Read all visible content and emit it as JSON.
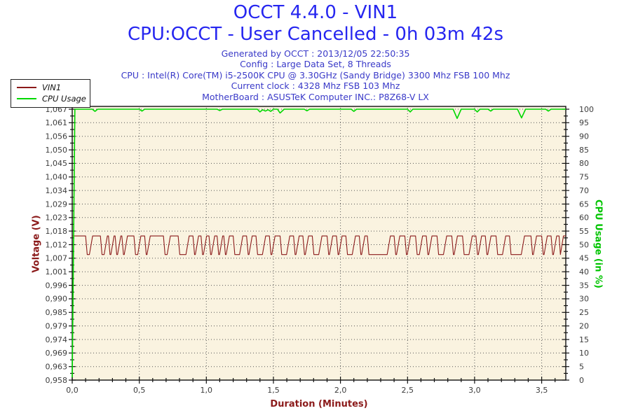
{
  "header": {
    "title_line1": "OCCT 4.4.0 - VIN1",
    "title_line2": "CPU:OCCT - User Cancelled - 0h 03m 42s",
    "info_lines": [
      "Generated by OCCT : 2013/12/05 22:50:35",
      "Config : Large Data Set, 8 Threads",
      "CPU : Intel(R) Core(TM) i5-2500K CPU @ 3.30GHz (Sandy Bridge) 3300 Mhz FSB 100 Mhz",
      "Current clock : 4328 Mhz FSB 103 Mhz",
      "MotherBoard : ASUSTeK Computer INC.: P8Z68-V LX"
    ]
  },
  "legend": {
    "items": [
      {
        "label": "VIN1",
        "color": "#8B1A1A"
      },
      {
        "label": "CPU Usage",
        "color": "#00D800"
      }
    ]
  },
  "colors": {
    "title_blue": "#2626F0",
    "info_blue": "#3A3AC8",
    "voltage_red": "#8B1A1A",
    "cpu_green": "#00C400",
    "tick_label_gray": "#3C3C3C",
    "plot_bg": "#FAF3E0",
    "frame_black": "#111111",
    "grid_dot": "#555555"
  },
  "chart_data": {
    "type": "line",
    "title": "OCCT 4.4.0 - VIN1",
    "xlabel": "Duration (Minutes)",
    "ylabel_left": "Voltage (V)",
    "ylabel_right": "CPU Usage (in %)",
    "grid": "dotted",
    "legend_position": "top-left",
    "plot_bg": "#FAF3E0",
    "x_range": [
      0,
      3.68
    ],
    "x_major_ticks": {
      "values": [
        0,
        0.5,
        1.0,
        1.5,
        2.0,
        2.5,
        3.0,
        3.5
      ],
      "labels": [
        "0,0",
        "0,5",
        "1,0",
        "1,5",
        "2,0",
        "2,5",
        "3,0",
        "3,5"
      ]
    },
    "x_minor_step": 0.1,
    "y_left": {
      "range": [
        0.958,
        1.067
      ],
      "tick_labels_top_to_bottom": [
        "1,067",
        "1,061",
        "1,056",
        "1,050",
        "1,045",
        "1,040",
        "1,034",
        "1,029",
        "1,023",
        "1,018",
        "1,012",
        "1,007",
        "1,001",
        "0,996",
        "0,990",
        "0,985",
        "0,979",
        "0,974",
        "0,969",
        "0,963",
        "0,958"
      ]
    },
    "y_right": {
      "range": [
        0,
        100
      ],
      "tick_labels_top_to_bottom": [
        "100",
        "95",
        "90",
        "85",
        "80",
        "75",
        "70",
        "65",
        "60",
        "55",
        "50",
        "45",
        "40",
        "35",
        "30",
        "25",
        "20",
        "15",
        "10",
        "5",
        "0"
      ]
    },
    "series": [
      {
        "name": "VIN1",
        "axis": "left",
        "color": "#8B1A1A",
        "waveform": {
          "high": 1.016,
          "low": 1.0085,
          "start": 0.0,
          "end": 3.68,
          "ramp": 0.012,
          "low_segments": [
            [
              0.1,
              0.14
            ],
            [
              0.21,
              0.25
            ],
            [
              0.27,
              0.3
            ],
            [
              0.32,
              0.35
            ],
            [
              0.37,
              0.4
            ],
            [
              0.46,
              0.5
            ],
            [
              0.54,
              0.57
            ],
            [
              0.68,
              0.72
            ],
            [
              0.79,
              0.86
            ],
            [
              0.9,
              0.93
            ],
            [
              0.96,
              0.99
            ],
            [
              1.02,
              1.05
            ],
            [
              1.08,
              1.11
            ],
            [
              1.13,
              1.16
            ],
            [
              1.2,
              1.26
            ],
            [
              1.3,
              1.33
            ],
            [
              1.37,
              1.43
            ],
            [
              1.47,
              1.5
            ],
            [
              1.55,
              1.61
            ],
            [
              1.65,
              1.68
            ],
            [
              1.72,
              1.75
            ],
            [
              1.79,
              1.85
            ],
            [
              1.9,
              1.93
            ],
            [
              1.97,
              2.0
            ],
            [
              2.04,
              2.1
            ],
            [
              2.14,
              2.17
            ],
            [
              2.2,
              2.36
            ],
            [
              2.4,
              2.43
            ],
            [
              2.48,
              2.51
            ],
            [
              2.56,
              2.6
            ],
            [
              2.64,
              2.67
            ],
            [
              2.72,
              2.78
            ],
            [
              2.83,
              2.86
            ],
            [
              2.91,
              2.97
            ],
            [
              3.01,
              3.04
            ],
            [
              3.08,
              3.11
            ],
            [
              3.16,
              3.22
            ],
            [
              3.26,
              3.36
            ],
            [
              3.42,
              3.45
            ],
            [
              3.5,
              3.53
            ],
            [
              3.57,
              3.6
            ],
            [
              3.63,
              3.65
            ]
          ]
        }
      },
      {
        "name": "CPU Usage",
        "axis": "right",
        "color": "#00D800",
        "points": [
          [
            0.0,
            1
          ],
          [
            0.02,
            100
          ],
          [
            0.15,
            100
          ],
          [
            0.17,
            99.2
          ],
          [
            0.19,
            100
          ],
          [
            0.5,
            100
          ],
          [
            0.52,
            99.3
          ],
          [
            0.54,
            100
          ],
          [
            1.08,
            100
          ],
          [
            1.1,
            99.5
          ],
          [
            1.12,
            100
          ],
          [
            1.38,
            100
          ],
          [
            1.4,
            99.0
          ],
          [
            1.42,
            99.8
          ],
          [
            1.44,
            99.3
          ],
          [
            1.46,
            99.8
          ],
          [
            1.48,
            99.2
          ],
          [
            1.5,
            100
          ],
          [
            1.53,
            100
          ],
          [
            1.55,
            98.6
          ],
          [
            1.58,
            100
          ],
          [
            1.73,
            100
          ],
          [
            1.75,
            99.4
          ],
          [
            1.77,
            100
          ],
          [
            2.08,
            100
          ],
          [
            2.1,
            99.2
          ],
          [
            2.12,
            100
          ],
          [
            2.5,
            100
          ],
          [
            2.52,
            99.0
          ],
          [
            2.54,
            100
          ],
          [
            2.84,
            100
          ],
          [
            2.87,
            96.6
          ],
          [
            2.9,
            100
          ],
          [
            3.0,
            100
          ],
          [
            3.02,
            99.0
          ],
          [
            3.04,
            100
          ],
          [
            3.1,
            100
          ],
          [
            3.12,
            99.3
          ],
          [
            3.14,
            100
          ],
          [
            3.32,
            100
          ],
          [
            3.35,
            96.8
          ],
          [
            3.38,
            100
          ],
          [
            3.53,
            100
          ],
          [
            3.55,
            99.3
          ],
          [
            3.57,
            100
          ],
          [
            3.68,
            100
          ]
        ]
      }
    ]
  }
}
